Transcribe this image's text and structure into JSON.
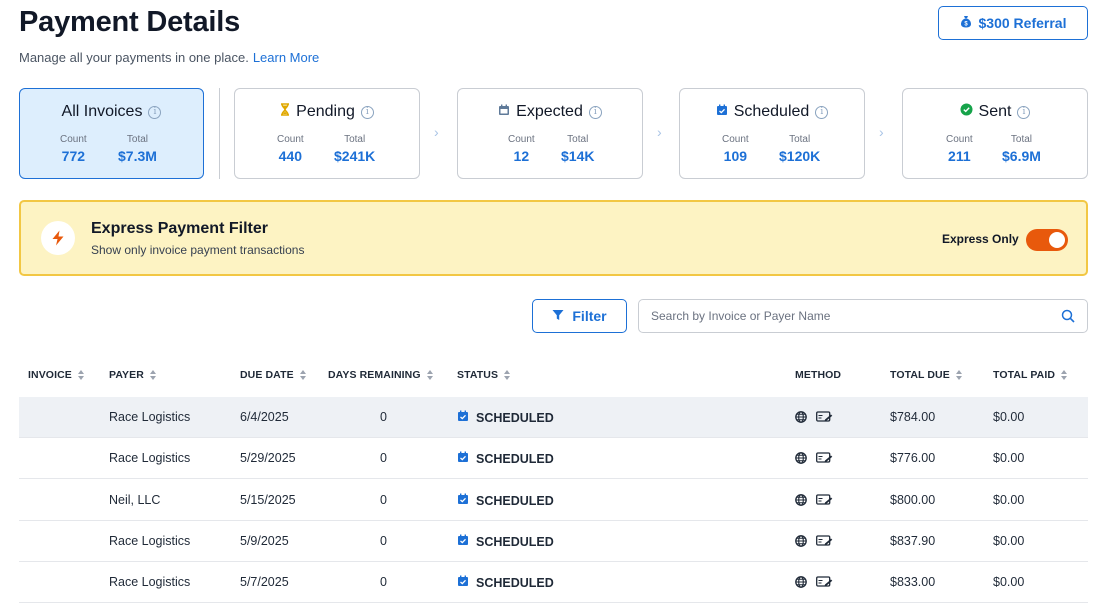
{
  "header": {
    "title": "Payment Details",
    "subtitle": "Manage all your payments in one place.",
    "learn_more": "Learn More",
    "referral_label": "$300 Referral"
  },
  "cards": [
    {
      "title": "All Invoices",
      "count_label": "Count",
      "count": "772",
      "total_label": "Total",
      "total": "$7.3M"
    },
    {
      "title": "Pending",
      "count_label": "Count",
      "count": "440",
      "total_label": "Total",
      "total": "$241K"
    },
    {
      "title": "Expected",
      "count_label": "Count",
      "count": "12",
      "total_label": "Total",
      "total": "$14K"
    },
    {
      "title": "Scheduled",
      "count_label": "Count",
      "count": "109",
      "total_label": "Total",
      "total": "$120K"
    },
    {
      "title": "Sent",
      "count_label": "Count",
      "count": "211",
      "total_label": "Total",
      "total": "$6.9M"
    }
  ],
  "express": {
    "title": "Express Payment Filter",
    "description": "Show only invoice payment transactions",
    "toggle_label": "Express Only",
    "toggle_on": true
  },
  "toolbar": {
    "filter_label": "Filter",
    "search_placeholder": "Search by Invoice or Payer Name"
  },
  "table": {
    "columns": [
      "INVOICE",
      "PAYER",
      "DUE DATE",
      "DAYS REMAINING",
      "STATUS",
      "METHOD",
      "TOTAL DUE",
      "TOTAL PAID"
    ],
    "rows": [
      {
        "invoice": "",
        "payer": "Race Logistics",
        "due_date": "6/4/2025",
        "days": "0",
        "status": "SCHEDULED",
        "total_due": "$784.00",
        "total_paid": "$0.00"
      },
      {
        "invoice": "",
        "payer": "Race Logistics",
        "due_date": "5/29/2025",
        "days": "0",
        "status": "SCHEDULED",
        "total_due": "$776.00",
        "total_paid": "$0.00"
      },
      {
        "invoice": "",
        "payer": "Neil, LLC",
        "due_date": "5/15/2025",
        "days": "0",
        "status": "SCHEDULED",
        "total_due": "$800.00",
        "total_paid": "$0.00"
      },
      {
        "invoice": "",
        "payer": "Race Logistics",
        "due_date": "5/9/2025",
        "days": "0",
        "status": "SCHEDULED",
        "total_due": "$837.90",
        "total_paid": "$0.00"
      },
      {
        "invoice": "",
        "payer": "Race Logistics",
        "due_date": "5/7/2025",
        "days": "0",
        "status": "SCHEDULED",
        "total_due": "$833.00",
        "total_paid": "$0.00"
      }
    ]
  },
  "colors": {
    "accent": "#1d70d6",
    "banner_bg": "#fdf3c3",
    "banner_border": "#f2c744",
    "toggle_on": "#e8590c",
    "sent_green": "#16a34a",
    "pending_gold": "#e0a800"
  }
}
